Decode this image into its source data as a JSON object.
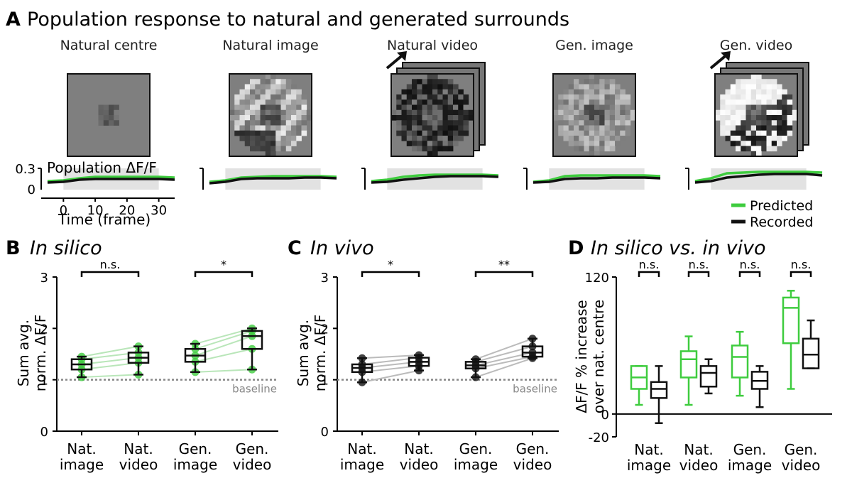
{
  "figure": {
    "panelA": {
      "letter": "A",
      "title": "Population response to natural and generated surrounds"
    },
    "stimuli": [
      {
        "label": "Natural centre",
        "kind": "centre",
        "video": false
      },
      {
        "label": "Natural image",
        "kind": "natimg",
        "video": false
      },
      {
        "label": "Natural video",
        "kind": "natvid",
        "video": true
      },
      {
        "label": "Gen. image",
        "kind": "genimg",
        "video": false
      },
      {
        "label": "Gen. video",
        "kind": "genvid",
        "video": true
      }
    ],
    "traces": {
      "ylabel": "Population ΔF/F",
      "xlabel": "Time (frame)",
      "yticks": [
        "0.3",
        "0"
      ],
      "xticks": [
        "0",
        "10",
        "20",
        "30"
      ]
    },
    "legend": {
      "predicted": "Predicted",
      "recorded": "Recorded"
    },
    "colors": {
      "predicted": "#3ecc3e",
      "recorded": "#111111",
      "stimulus_period": "#e2e2e2",
      "baseline": "#888888",
      "pair_line_green": "#b9e6b9",
      "pair_line_gray": "#bbbbbb"
    },
    "panelB": {
      "letter": "B",
      "title": "In silico"
    },
    "panelC": {
      "letter": "C",
      "title": "In vivo"
    },
    "panelD": {
      "letter": "D",
      "title": "In silico vs. in vivo"
    },
    "baseline_label": "baseline",
    "bc_ylabel": [
      "Sum avg.",
      "norm. ΔF/F"
    ],
    "d_ylabel": [
      "ΔF/F % increase",
      "over nat. centre"
    ]
  },
  "chart_data": [
    {
      "id": "traces",
      "type": "line",
      "x": [
        -5,
        0,
        5,
        10,
        15,
        20,
        25,
        30,
        35
      ],
      "xlim": [
        -7,
        35
      ],
      "ylim": [
        0,
        0.3
      ],
      "stimulus_window": [
        0,
        30
      ],
      "series": [
        {
          "panel": "Natural centre",
          "predicted": [
            0.12,
            0.13,
            0.16,
            0.18,
            0.18,
            0.18,
            0.18,
            0.18,
            0.17
          ],
          "recorded": [
            0.1,
            0.11,
            0.14,
            0.15,
            0.15,
            0.15,
            0.15,
            0.15,
            0.14
          ]
        },
        {
          "panel": "Natural image",
          "predicted": [
            0.11,
            0.13,
            0.17,
            0.18,
            0.19,
            0.19,
            0.19,
            0.19,
            0.18
          ],
          "recorded": [
            0.09,
            0.11,
            0.15,
            0.16,
            0.16,
            0.16,
            0.17,
            0.17,
            0.16
          ]
        },
        {
          "panel": "Natural video",
          "predicted": [
            0.12,
            0.14,
            0.18,
            0.2,
            0.21,
            0.21,
            0.21,
            0.21,
            0.2
          ],
          "recorded": [
            0.1,
            0.11,
            0.14,
            0.16,
            0.18,
            0.19,
            0.19,
            0.19,
            0.18
          ]
        },
        {
          "panel": "Gen. image",
          "predicted": [
            0.11,
            0.13,
            0.19,
            0.2,
            0.2,
            0.2,
            0.2,
            0.2,
            0.19
          ],
          "recorded": [
            0.1,
            0.11,
            0.15,
            0.16,
            0.16,
            0.17,
            0.17,
            0.17,
            0.16
          ]
        },
        {
          "panel": "Gen. video",
          "predicted": [
            0.12,
            0.16,
            0.23,
            0.24,
            0.25,
            0.25,
            0.25,
            0.25,
            0.24
          ],
          "recorded": [
            0.1,
            0.12,
            0.17,
            0.19,
            0.21,
            0.22,
            0.22,
            0.22,
            0.2
          ]
        }
      ]
    },
    {
      "id": "B",
      "type": "box",
      "title": "In silico",
      "ylabel": "Sum avg. norm. ΔF/F",
      "ylim": [
        0,
        3
      ],
      "yticks": [
        0,
        1,
        2,
        3
      ],
      "baseline": 1,
      "categories": [
        "Nat.\nimage",
        "Nat.\nvideo",
        "Gen.\nimage",
        "Gen.\nvideo"
      ],
      "boxes": [
        {
          "min": 1.05,
          "q1": 1.2,
          "median": 1.3,
          "q3": 1.4,
          "max": 1.45
        },
        {
          "min": 1.1,
          "q1": 1.33,
          "median": 1.43,
          "q3": 1.53,
          "max": 1.65
        },
        {
          "min": 1.15,
          "q1": 1.35,
          "median": 1.47,
          "q3": 1.6,
          "max": 1.7
        },
        {
          "min": 1.2,
          "q1": 1.6,
          "median": 1.85,
          "q3": 1.95,
          "max": 2.0
        }
      ],
      "points": [
        [
          1.05,
          1.2,
          1.3,
          1.4,
          1.45
        ],
        [
          1.1,
          1.33,
          1.43,
          1.53,
          1.65
        ],
        [
          1.15,
          1.35,
          1.47,
          1.6,
          1.7
        ],
        [
          1.2,
          1.6,
          1.85,
          1.95,
          2.0
        ]
      ],
      "pairs": [
        [
          0,
          1
        ],
        [
          2,
          3
        ]
      ],
      "significance": [
        {
          "pair": [
            0,
            1
          ],
          "label": "n.s."
        },
        {
          "pair": [
            2,
            3
          ],
          "label": "*"
        }
      ]
    },
    {
      "id": "C",
      "type": "box",
      "title": "In vivo",
      "ylabel": "Sum avg. norm. ΔF/F",
      "ylim": [
        0,
        3
      ],
      "yticks": [
        0,
        1,
        2,
        3
      ],
      "baseline": 1,
      "categories": [
        "Nat.\nimage",
        "Nat.\nvideo",
        "Gen.\nimage",
        "Gen.\nvideo"
      ],
      "boxes": [
        {
          "min": 0.95,
          "q1": 1.15,
          "median": 1.23,
          "q3": 1.3,
          "max": 1.42
        },
        {
          "min": 1.18,
          "q1": 1.27,
          "median": 1.35,
          "q3": 1.43,
          "max": 1.48
        },
        {
          "min": 1.05,
          "q1": 1.22,
          "median": 1.28,
          "q3": 1.35,
          "max": 1.4
        },
        {
          "min": 1.42,
          "q1": 1.45,
          "median": 1.53,
          "q3": 1.65,
          "max": 1.8
        }
      ],
      "points": [
        [
          0.95,
          1.15,
          1.23,
          1.3,
          1.42
        ],
        [
          1.18,
          1.27,
          1.35,
          1.43,
          1.48
        ],
        [
          1.05,
          1.22,
          1.28,
          1.35,
          1.4
        ],
        [
          1.42,
          1.45,
          1.53,
          1.65,
          1.8
        ]
      ],
      "pairs": [
        [
          0,
          1
        ],
        [
          2,
          3
        ]
      ],
      "significance": [
        {
          "pair": [
            0,
            1
          ],
          "label": "*"
        },
        {
          "pair": [
            2,
            3
          ],
          "label": "**"
        }
      ]
    },
    {
      "id": "D",
      "type": "box",
      "title": "In silico vs. in vivo",
      "ylabel": "ΔF/F % increase over nat. centre",
      "ylim": [
        -20,
        120
      ],
      "yticks": [
        -20,
        0,
        120
      ],
      "categories": [
        "Nat.\nimage",
        "Nat.\nvideo",
        "Gen.\nimage",
        "Gen.\nvideo"
      ],
      "groups": [
        {
          "in_silico": {
            "min": 8,
            "q1": 22,
            "median": 32,
            "q3": 42,
            "max": 42
          },
          "in_vivo": {
            "min": -8,
            "q1": 14,
            "median": 22,
            "q3": 28,
            "max": 42
          }
        },
        {
          "in_silico": {
            "min": 8,
            "q1": 32,
            "median": 48,
            "q3": 55,
            "max": 68
          },
          "in_vivo": {
            "min": 18,
            "q1": 24,
            "median": 36,
            "q3": 42,
            "max": 48
          }
        },
        {
          "in_silico": {
            "min": 16,
            "q1": 32,
            "median": 50,
            "q3": 60,
            "max": 72
          },
          "in_vivo": {
            "min": 6,
            "q1": 22,
            "median": 29,
            "q3": 37,
            "max": 42
          }
        },
        {
          "in_silico": {
            "min": 22,
            "q1": 62,
            "median": 93,
            "q3": 102,
            "max": 108
          },
          "in_vivo": {
            "min": 40,
            "q1": 40,
            "median": 52,
            "q3": 66,
            "max": 82
          }
        }
      ],
      "significance": [
        {
          "group": 0,
          "label": "n.s."
        },
        {
          "group": 1,
          "label": "n.s."
        },
        {
          "group": 2,
          "label": "n.s."
        },
        {
          "group": 3,
          "label": "n.s."
        }
      ]
    }
  ]
}
